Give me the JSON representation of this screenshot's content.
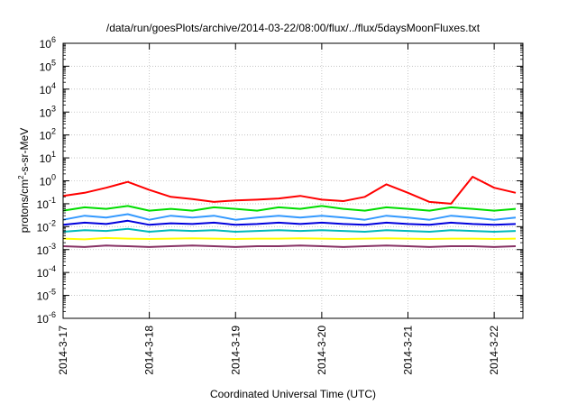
{
  "chart_data": {
    "type": "line",
    "title": "/data/run/goesPlots/archive/2014-03-22/08:00/flux/../flux/5daysMoonFluxes.txt",
    "xlabel": "Coordinated Universal Time (UTC)",
    "ylabel": {
      "pre": "protons/cm",
      "sup": "2",
      "post": "-s-sr-MeV"
    },
    "yscale": "log",
    "ylim": [
      1e-06,
      1000000.0
    ],
    "xlim": [
      "2014-03-17",
      "2014-03-22 08:00"
    ],
    "grid": true,
    "x_ticks": [
      "2014-3-17",
      "2014-3-18",
      "2014-3-19",
      "2014-3-20",
      "2014-3-21",
      "2014-3-22"
    ],
    "y_ticks": [
      {
        "base": "10",
        "exp": "-6"
      },
      {
        "base": "10",
        "exp": "-5"
      },
      {
        "base": "10",
        "exp": "-4"
      },
      {
        "base": "10",
        "exp": "-3"
      },
      {
        "base": "10",
        "exp": "-2"
      },
      {
        "base": "10",
        "exp": "-1"
      },
      {
        "base": "10",
        "exp": "0"
      },
      {
        "base": "10",
        "exp": "1"
      },
      {
        "base": "10",
        "exp": "2"
      },
      {
        "base": "10",
        "exp": "3"
      },
      {
        "base": "10",
        "exp": "4"
      },
      {
        "base": "10",
        "exp": "5"
      },
      {
        "base": "10",
        "exp": "6"
      }
    ],
    "x": [
      "2014-03-17 00:00",
      "2014-03-17 06:00",
      "2014-03-17 12:00",
      "2014-03-17 18:00",
      "2014-03-18 00:00",
      "2014-03-18 06:00",
      "2014-03-18 12:00",
      "2014-03-18 18:00",
      "2014-03-19 00:00",
      "2014-03-19 06:00",
      "2014-03-19 12:00",
      "2014-03-19 18:00",
      "2014-03-20 00:00",
      "2014-03-20 06:00",
      "2014-03-20 12:00",
      "2014-03-20 18:00",
      "2014-03-21 00:00",
      "2014-03-21 06:00",
      "2014-03-21 12:00",
      "2014-03-21 18:00",
      "2014-03-22 00:00",
      "2014-03-22 06:00"
    ],
    "series": [
      {
        "color": "#ff0000",
        "values": [
          0.22,
          0.3,
          0.5,
          0.9,
          0.4,
          0.2,
          0.16,
          0.12,
          0.14,
          0.15,
          0.17,
          0.22,
          0.15,
          0.13,
          0.2,
          0.7,
          0.3,
          0.12,
          0.1,
          1.5,
          0.5,
          0.3
        ]
      },
      {
        "color": "#00dd00",
        "values": [
          0.05,
          0.07,
          0.06,
          0.08,
          0.05,
          0.06,
          0.05,
          0.07,
          0.06,
          0.05,
          0.07,
          0.06,
          0.08,
          0.06,
          0.05,
          0.07,
          0.06,
          0.05,
          0.07,
          0.06,
          0.05,
          0.06
        ]
      },
      {
        "color": "#3399ff",
        "values": [
          0.02,
          0.03,
          0.025,
          0.035,
          0.02,
          0.03,
          0.025,
          0.03,
          0.02,
          0.025,
          0.03,
          0.025,
          0.03,
          0.025,
          0.02,
          0.03,
          0.025,
          0.02,
          0.03,
          0.025,
          0.02,
          0.025
        ]
      },
      {
        "color": "#0000dd",
        "values": [
          0.012,
          0.015,
          0.013,
          0.018,
          0.012,
          0.014,
          0.013,
          0.015,
          0.012,
          0.013,
          0.015,
          0.013,
          0.015,
          0.013,
          0.012,
          0.015,
          0.013,
          0.012,
          0.015,
          0.013,
          0.012,
          0.013
        ]
      },
      {
        "color": "#00bbbb",
        "values": [
          0.006,
          0.007,
          0.0065,
          0.008,
          0.006,
          0.007,
          0.0065,
          0.007,
          0.006,
          0.0065,
          0.007,
          0.0065,
          0.007,
          0.0065,
          0.006,
          0.007,
          0.0065,
          0.006,
          0.007,
          0.0065,
          0.006,
          0.0065
        ]
      },
      {
        "color": "#ffff00",
        "values": [
          0.003,
          0.0028,
          0.0032,
          0.003,
          0.0029,
          0.003,
          0.0031,
          0.003,
          0.0029,
          0.003,
          0.003,
          0.0031,
          0.003,
          0.0029,
          0.003,
          0.0031,
          0.003,
          0.0029,
          0.003,
          0.003,
          0.0029,
          0.003
        ]
      },
      {
        "color": "#883366",
        "values": [
          0.0014,
          0.0013,
          0.0015,
          0.0014,
          0.0013,
          0.0014,
          0.0015,
          0.0014,
          0.0013,
          0.0014,
          0.0014,
          0.0015,
          0.0014,
          0.0013,
          0.0014,
          0.0015,
          0.0014,
          0.0013,
          0.0014,
          0.0014,
          0.0013,
          0.0014
        ]
      }
    ]
  }
}
